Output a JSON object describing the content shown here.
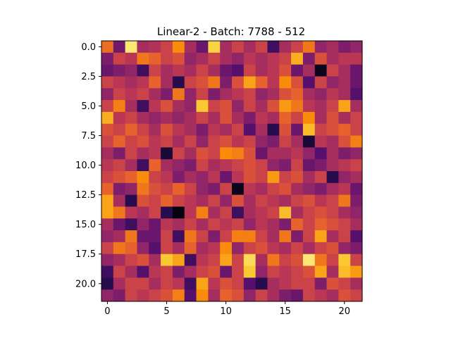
{
  "chart_data": {
    "type": "heatmap",
    "title": "Linear-2 - Batch: 7788 - 512",
    "xlabel": "",
    "ylabel": "",
    "rows": 22,
    "cols": 22,
    "colormap": "inferno",
    "value_range": [
      0,
      1
    ],
    "xlim": [
      -0.5,
      21.5
    ],
    "ylim": [
      21.5,
      -0.5
    ],
    "x_ticks": [
      0,
      5,
      10,
      15,
      20
    ],
    "x_tick_labels": [
      "0",
      "5",
      "10",
      "15",
      "20"
    ],
    "y_ticks": [
      0.0,
      2.5,
      5.0,
      7.5,
      10.0,
      12.5,
      15.0,
      17.5,
      20.0
    ],
    "y_tick_labels": [
      "0.0",
      "2.5",
      "5.0",
      "7.5",
      "10.0",
      "12.5",
      "15.0",
      "17.5",
      "20.0"
    ],
    "grid": false,
    "values": [
      [
        0.68,
        0.32,
        0.95,
        0.45,
        0.48,
        0.55,
        0.75,
        0.45,
        0.3,
        0.9,
        0.45,
        0.55,
        0.45,
        0.55,
        0.2,
        0.45,
        0.55,
        0.7,
        0.4,
        0.45,
        0.35,
        0.4
      ],
      [
        0.35,
        0.55,
        0.5,
        0.7,
        0.65,
        0.55,
        0.6,
        0.4,
        0.45,
        0.55,
        0.45,
        0.4,
        0.5,
        0.45,
        0.5,
        0.55,
        0.82,
        0.35,
        0.6,
        0.45,
        0.5,
        0.5
      ],
      [
        0.3,
        0.35,
        0.4,
        0.2,
        0.55,
        0.45,
        0.5,
        0.45,
        0.55,
        0.45,
        0.3,
        0.25,
        0.55,
        0.45,
        0.5,
        0.6,
        0.3,
        0.45,
        0.05,
        0.55,
        0.45,
        0.3
      ],
      [
        0.55,
        0.5,
        0.45,
        0.5,
        0.65,
        0.45,
        0.15,
        0.55,
        0.6,
        0.7,
        0.35,
        0.6,
        0.8,
        0.65,
        0.5,
        0.75,
        0.6,
        0.25,
        0.55,
        0.4,
        0.45,
        0.3
      ],
      [
        0.4,
        0.55,
        0.5,
        0.55,
        0.45,
        0.35,
        0.7,
        0.4,
        0.55,
        0.35,
        0.45,
        0.5,
        0.55,
        0.4,
        0.45,
        0.6,
        0.65,
        0.45,
        0.4,
        0.5,
        0.45,
        0.25
      ],
      [
        0.55,
        0.72,
        0.45,
        0.2,
        0.5,
        0.6,
        0.45,
        0.4,
        0.88,
        0.55,
        0.6,
        0.4,
        0.55,
        0.45,
        0.6,
        0.78,
        0.7,
        0.5,
        0.45,
        0.55,
        0.8,
        0.45
      ],
      [
        0.82,
        0.5,
        0.55,
        0.45,
        0.4,
        0.45,
        0.4,
        0.45,
        0.55,
        0.45,
        0.6,
        0.45,
        0.35,
        0.5,
        0.45,
        0.65,
        0.55,
        0.75,
        0.45,
        0.6,
        0.45,
        0.55
      ],
      [
        0.6,
        0.55,
        0.65,
        0.55,
        0.45,
        0.6,
        0.5,
        0.45,
        0.35,
        0.5,
        0.45,
        0.55,
        0.25,
        0.45,
        0.15,
        0.6,
        0.3,
        0.85,
        0.55,
        0.6,
        0.65,
        0.55
      ],
      [
        0.55,
        0.65,
        0.55,
        0.6,
        0.5,
        0.55,
        0.45,
        0.55,
        0.4,
        0.55,
        0.6,
        0.5,
        0.55,
        0.4,
        0.35,
        0.55,
        0.45,
        0.1,
        0.5,
        0.45,
        0.6,
        0.72
      ],
      [
        0.45,
        0.35,
        0.55,
        0.45,
        0.5,
        0.1,
        0.55,
        0.45,
        0.6,
        0.55,
        0.75,
        0.72,
        0.6,
        0.3,
        0.45,
        0.45,
        0.5,
        0.4,
        0.25,
        0.45,
        0.35,
        0.4
      ],
      [
        0.5,
        0.55,
        0.45,
        0.2,
        0.65,
        0.45,
        0.4,
        0.35,
        0.55,
        0.45,
        0.5,
        0.55,
        0.6,
        0.55,
        0.4,
        0.35,
        0.55,
        0.3,
        0.35,
        0.45,
        0.5,
        0.55
      ],
      [
        0.55,
        0.6,
        0.65,
        0.75,
        0.55,
        0.5,
        0.35,
        0.45,
        0.4,
        0.5,
        0.3,
        0.5,
        0.6,
        0.55,
        0.78,
        0.55,
        0.6,
        0.45,
        0.55,
        0.15,
        0.4,
        0.45
      ],
      [
        0.65,
        0.35,
        0.4,
        0.7,
        0.6,
        0.55,
        0.65,
        0.55,
        0.4,
        0.35,
        0.55,
        0.05,
        0.5,
        0.45,
        0.55,
        0.6,
        0.45,
        0.4,
        0.35,
        0.45,
        0.5,
        0.3
      ],
      [
        0.8,
        0.45,
        0.15,
        0.6,
        0.55,
        0.65,
        0.55,
        0.5,
        0.45,
        0.55,
        0.4,
        0.6,
        0.45,
        0.55,
        0.5,
        0.45,
        0.55,
        0.6,
        0.5,
        0.55,
        0.7,
        0.35
      ],
      [
        0.8,
        0.7,
        0.5,
        0.45,
        0.55,
        0.15,
        0.02,
        0.5,
        0.72,
        0.45,
        0.55,
        0.2,
        0.45,
        0.5,
        0.55,
        0.85,
        0.45,
        0.55,
        0.6,
        0.55,
        0.45,
        0.4
      ],
      [
        0.45,
        0.3,
        0.2,
        0.4,
        0.3,
        0.5,
        0.45,
        0.55,
        0.45,
        0.55,
        0.5,
        0.55,
        0.4,
        0.5,
        0.45,
        0.35,
        0.65,
        0.55,
        0.65,
        0.6,
        0.55,
        0.45
      ],
      [
        0.4,
        0.45,
        0.7,
        0.3,
        0.3,
        0.55,
        0.2,
        0.7,
        0.55,
        0.35,
        0.55,
        0.72,
        0.72,
        0.55,
        0.45,
        0.7,
        0.35,
        0.55,
        0.8,
        0.45,
        0.55,
        0.25
      ],
      [
        0.55,
        0.7,
        0.65,
        0.4,
        0.25,
        0.55,
        0.45,
        0.65,
        0.45,
        0.5,
        0.75,
        0.4,
        0.55,
        0.6,
        0.5,
        0.45,
        0.55,
        0.45,
        0.55,
        0.6,
        0.4,
        0.35
      ],
      [
        0.4,
        0.45,
        0.55,
        0.6,
        0.45,
        0.88,
        0.8,
        0.2,
        0.5,
        0.55,
        0.8,
        0.55,
        0.92,
        0.45,
        0.7,
        0.55,
        0.6,
        0.95,
        0.7,
        0.55,
        0.88,
        0.55
      ],
      [
        0.2,
        0.55,
        0.45,
        0.25,
        0.5,
        0.55,
        0.35,
        0.45,
        0.55,
        0.6,
        0.3,
        0.55,
        0.88,
        0.4,
        0.55,
        0.5,
        0.55,
        0.6,
        0.8,
        0.45,
        0.85,
        0.78
      ],
      [
        0.15,
        0.45,
        0.55,
        0.55,
        0.45,
        0.55,
        0.5,
        0.2,
        0.8,
        0.5,
        0.6,
        0.55,
        0.25,
        0.15,
        0.45,
        0.5,
        0.55,
        0.55,
        0.35,
        0.6,
        0.55,
        0.45
      ],
      [
        0.4,
        0.35,
        0.55,
        0.5,
        0.55,
        0.6,
        0.72,
        0.25,
        0.75,
        0.45,
        0.65,
        0.6,
        0.4,
        0.55,
        0.45,
        0.35,
        0.3,
        0.55,
        0.5,
        0.45,
        0.6,
        0.55
      ]
    ]
  }
}
